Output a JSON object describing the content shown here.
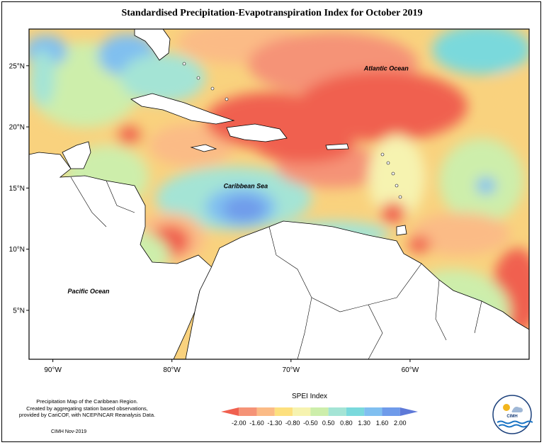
{
  "title": "Standardised Precipitation-Evapotranspiration Index for October 2019",
  "map": {
    "lon_range": [
      -92,
      -50
    ],
    "lat_range": [
      1,
      28
    ],
    "xaxis_ticks": [
      {
        "value": -90,
        "label": "90°W"
      },
      {
        "value": -80,
        "label": "80°W"
      },
      {
        "value": -70,
        "label": "70°W"
      },
      {
        "value": -60,
        "label": "60°W"
      }
    ],
    "yaxis_ticks": [
      {
        "value": 5,
        "label": "5°N"
      },
      {
        "value": 10,
        "label": "10°N"
      },
      {
        "value": 15,
        "label": "15°N"
      },
      {
        "value": 20,
        "label": "20°N"
      },
      {
        "value": 25,
        "label": "25°N"
      }
    ],
    "region_labels": [
      {
        "text": "Atlantic Ocean",
        "lon": -62.0,
        "lat": 24.6
      },
      {
        "text": "Caribbean Sea",
        "lon": -73.8,
        "lat": 15.0
      },
      {
        "text": "Pacific Ocean",
        "lon": -87.0,
        "lat": 6.4
      }
    ],
    "colors": {
      "background": "#ffffff",
      "land": "#ffffff",
      "coastline": "#000000"
    }
  },
  "legend": {
    "title": "SPEI Index",
    "breaks": [
      "-2.00",
      "-1.60",
      "-1.30",
      "-0.80",
      "-0.50",
      "0.50",
      "0.80",
      "1.30",
      "1.60",
      "2.00"
    ],
    "colors": [
      "#f0604f",
      "#f59377",
      "#fbbb86",
      "#fde07e",
      "#f6f3b0",
      "#cdeeab",
      "#a4e4d5",
      "#7ad9dc",
      "#80bff0",
      "#6f9bea",
      "#5e79d8"
    ]
  },
  "footnote": {
    "lines": [
      "Precipitation Map of the Caribbean Region.",
      "Created by aggregating station based observations,",
      "provided by CariCOF, with NCEP/NCAR Reanalysis Data."
    ],
    "credit": "CIMH Nov-2019"
  },
  "logo": {
    "text": "CIMH"
  }
}
